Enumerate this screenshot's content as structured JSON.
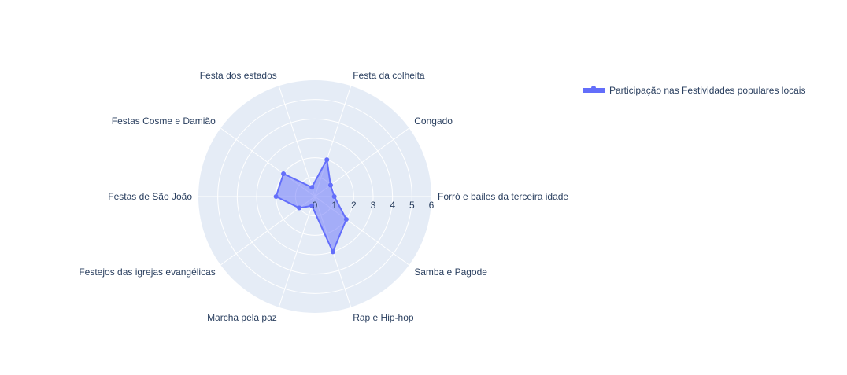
{
  "chart_data": {
    "type": "radar",
    "categories": [
      "Forró e bailes da terceira idade",
      "Congado",
      "Festa da colheita",
      "Festa dos estados",
      "Festas Cosme e Damião",
      "Festas de São João",
      "Festejos das igrejas evangélicas",
      "Marcha pela paz",
      "Rap e Hip-hop",
      "Samba e Pagode"
    ],
    "series": [
      {
        "name": "Participação nas Festividades populares locais",
        "values": [
          1,
          1,
          2,
          0.5,
          2,
          2,
          1,
          0.5,
          3,
          2
        ],
        "color": "#636efa"
      }
    ],
    "radial_ticks": [
      "0",
      "1",
      "2",
      "3",
      "4",
      "5",
      "6"
    ],
    "radial_range": [
      0,
      6
    ],
    "angular_direction": "counterclockwise",
    "grid": true,
    "legend_position": "top-right",
    "background_color": "#e5ecf6",
    "grid_color": "#ffffff"
  }
}
